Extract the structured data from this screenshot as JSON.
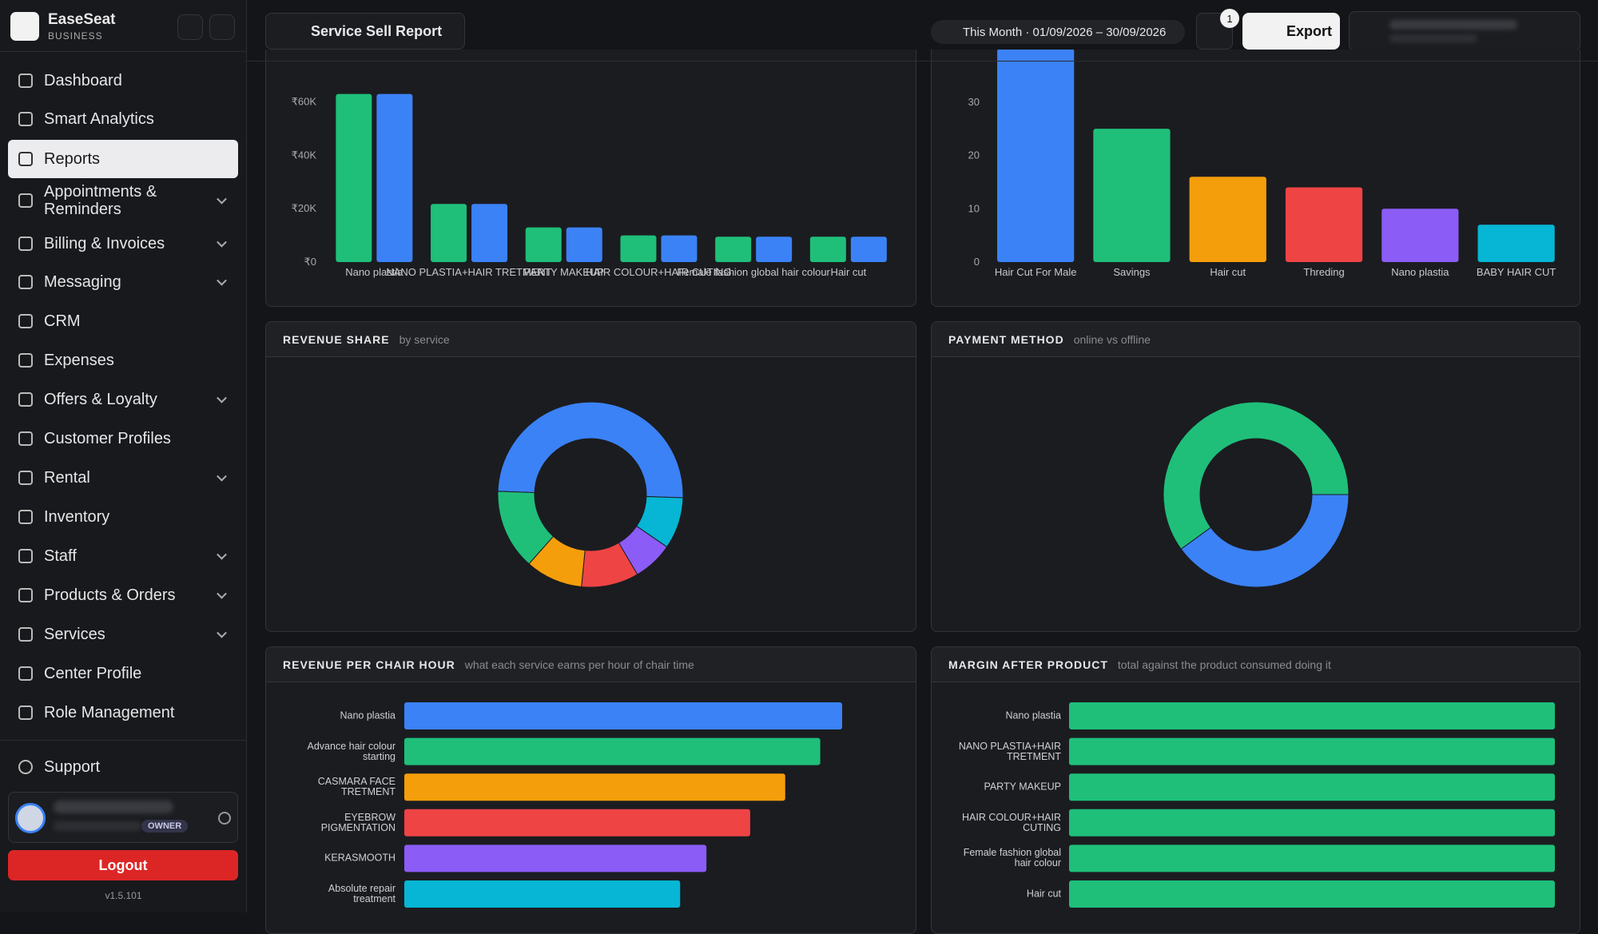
{
  "sidebar": {
    "brand": "EaseSeat",
    "tagline": "BUSINESS",
    "nav": [
      {
        "label": "Dashboard"
      },
      {
        "label": "Smart Analytics"
      },
      {
        "label": "Reports",
        "active": true
      },
      {
        "label": "Appointments & Reminders",
        "expandable": true
      },
      {
        "label": "Billing & Invoices",
        "expandable": true
      },
      {
        "label": "Messaging",
        "expandable": true
      },
      {
        "label": "CRM"
      },
      {
        "label": "Expenses"
      },
      {
        "label": "Offers & Loyalty",
        "expandable": true
      },
      {
        "label": "Customer Profiles"
      },
      {
        "label": "Rental",
        "expandable": true
      },
      {
        "label": "Inventory"
      },
      {
        "label": "Staff",
        "expandable": true
      },
      {
        "label": "Products & Orders",
        "expandable": true
      },
      {
        "label": "Services",
        "expandable": true
      },
      {
        "label": "Center Profile"
      },
      {
        "label": "Role Management"
      }
    ],
    "support": "Support",
    "role": "OWNER",
    "logout": "Logout",
    "version": "v1.5.101"
  },
  "topbar": {
    "report": "Service Sell Report",
    "date_range": "This Month · 01/09/2026 – 30/09/2026",
    "filter_count": 1,
    "export": "Export"
  },
  "chart_data": [
    {
      "type": "bar",
      "categories": [
        "Nano plastia",
        "NANO PLASTIA+HAIR TRETMENT",
        "PARTY MAKEUP",
        "HAIR COLOUR+HAIR CUTING",
        "Female fashion global hair colour",
        "Hair cut"
      ],
      "series": [
        {
          "color": "#1fbf7a",
          "values": [
            63000,
            21800,
            13000,
            10000,
            9500,
            9500
          ]
        },
        {
          "color": "#3b82f6",
          "values": [
            63000,
            21800,
            13000,
            10000,
            9500,
            9500
          ]
        }
      ],
      "ylim": [
        0,
        65000
      ],
      "yticks": [
        {
          "value": 0,
          "label": "₹0"
        },
        {
          "value": 20000,
          "label": "₹20K"
        },
        {
          "value": 40000,
          "label": "₹40K"
        },
        {
          "value": 60000,
          "label": "₹60K"
        }
      ]
    },
    {
      "type": "bar",
      "categories": [
        "Hair Cut For Male",
        "Savings",
        "Hair cut",
        "Threding",
        "Nano plastia",
        "BABY HAIR CUT"
      ],
      "values": [
        40,
        25,
        16,
        14,
        10,
        7
      ],
      "colors": [
        "#3b82f6",
        "#1fbf7a",
        "#f59e0b",
        "#ef4444",
        "#8b5cf6",
        "#06b6d4"
      ],
      "ylim": [
        0,
        40
      ],
      "yticks": [
        0,
        10,
        20,
        30
      ]
    },
    {
      "type": "donut",
      "title": "REVENUE SHARE",
      "subtitle": "by service",
      "values": [
        50,
        9,
        7,
        10,
        10,
        14
      ],
      "colors": [
        "#3b82f6",
        "#06b6d4",
        "#8b5cf6",
        "#ef4444",
        "#f59e0b",
        "#1fbf7a"
      ]
    },
    {
      "type": "donut",
      "title": "PAYMENT METHOD",
      "subtitle": "online vs offline",
      "values": [
        40,
        60
      ],
      "colors": [
        "#3b82f6",
        "#1fbf7a"
      ]
    },
    {
      "type": "hbar",
      "title": "REVENUE PER CHAIR HOUR",
      "subtitle": "what each service earns per hour of chair time",
      "categories": [
        "Nano plastia",
        "Advance hair colour starting",
        "CASMARA FACE TRETMENT",
        "EYEBROW PIGMENTATION",
        "KERASMOOTH",
        "Absolute repair treatment"
      ],
      "values": [
        100,
        95,
        87,
        79,
        69,
        63
      ],
      "colors": [
        "#3b82f6",
        "#1fbf7a",
        "#f59e0b",
        "#ef4444",
        "#8b5cf6",
        "#06b6d4"
      ],
      "xlim": [
        0,
        100
      ]
    },
    {
      "type": "hbar",
      "title": "MARGIN AFTER PRODUCT",
      "subtitle": "total against the product consumed doing it",
      "categories": [
        "Nano plastia",
        "NANO PLASTIA+HAIR TRETMENT",
        "PARTY MAKEUP",
        "HAIR COLOUR+HAIR CUTING",
        "Female fashion global hair colour",
        "Hair cut"
      ],
      "values": [
        100,
        100,
        100,
        100,
        100,
        100
      ],
      "color": "#1fbf7a",
      "xlim": [
        0,
        100
      ]
    }
  ]
}
